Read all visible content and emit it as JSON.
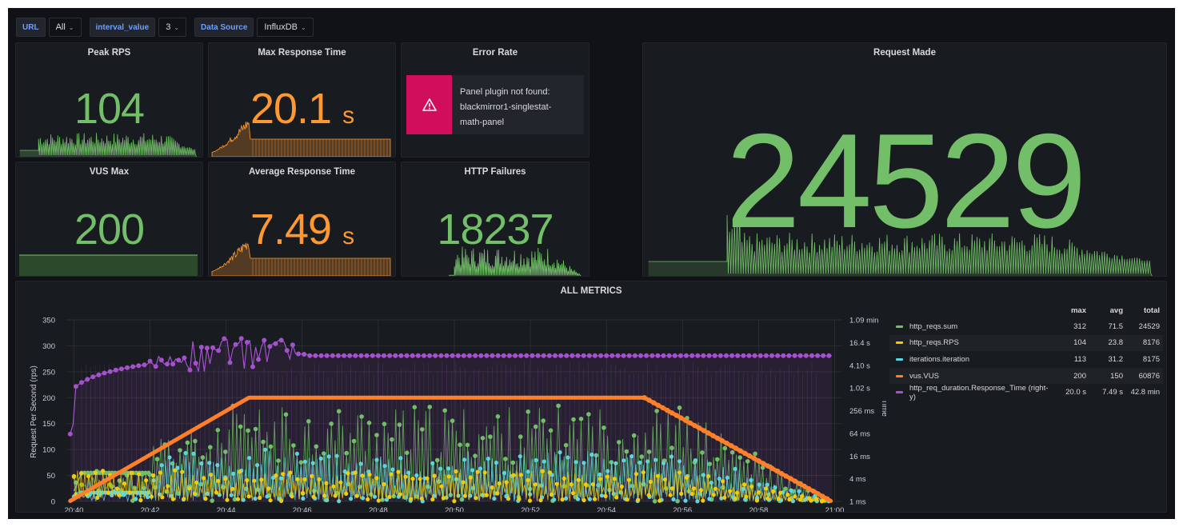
{
  "variables": [
    {
      "label": "URL",
      "value": "All"
    },
    {
      "label": "interval_value",
      "value": "3"
    },
    {
      "label": "Data Source",
      "value": "InfluxDB"
    }
  ],
  "panels": {
    "peak_rps": {
      "title": "Peak RPS",
      "value": "104",
      "color": "#73bf69"
    },
    "max_response": {
      "title": "Max Response Time",
      "value": "20.1",
      "unit": "s",
      "color": "#ff9830"
    },
    "error_rate": {
      "title": "Error Rate",
      "error": "Panel plugin not found: blackmirror1-singlestat-math-panel",
      "error_line1": "Panel plugin not found:",
      "error_line2": "blackmirror1-singlestat-",
      "error_line3": "math-panel"
    },
    "request_made": {
      "title": "Request Made",
      "value": "24529",
      "color": "#73bf69"
    },
    "vus_max": {
      "title": "VUS Max",
      "value": "200",
      "color": "#73bf69"
    },
    "avg_response": {
      "title": "Average Response Time",
      "value": "7.49",
      "unit": "s",
      "color": "#ff9830"
    },
    "http_failures": {
      "title": "HTTP Failures",
      "value": "18237",
      "color": "#73bf69"
    }
  },
  "all_metrics": {
    "title": "ALL METRICS",
    "legend_headers": {
      "max": "max",
      "avg": "avg",
      "total": "total"
    },
    "legend": [
      {
        "name": "http_reqs.sum",
        "color": "#73bf69",
        "max": "312",
        "avg": "71.5",
        "total": "24529"
      },
      {
        "name": "http_reqs.RPS",
        "color": "#f2cc0c",
        "max": "104",
        "avg": "23.8",
        "total": "8176"
      },
      {
        "name": "iterations.iteration",
        "color": "#5cd5e0",
        "max": "113",
        "avg": "31.2",
        "total": "8175"
      },
      {
        "name": "vus.VUS",
        "color": "#ff7f2a",
        "max": "200",
        "avg": "150",
        "total": "60876"
      },
      {
        "name": "http_req_duration.Response_Time (right-y)",
        "color": "#a352cc",
        "max": "20.0 s",
        "avg": "7.49 s",
        "total": "42.8 min"
      }
    ]
  },
  "chart_data": {
    "type": "line",
    "title": "ALL METRICS",
    "ylabel": "Request Per Second (rps)",
    "y2label": "Time",
    "ylim": [
      0,
      350
    ],
    "yticks": [
      "0",
      "50",
      "100",
      "150",
      "200",
      "250",
      "300",
      "350"
    ],
    "y2ticks": [
      "1 ms",
      "4 ms",
      "16 ms",
      "64 ms",
      "256 ms",
      "1.02 s",
      "4.10 s",
      "16.4 s",
      "1.09 min"
    ],
    "xticks": [
      "20:40",
      "20:42",
      "20:44",
      "20:46",
      "20:48",
      "20:50",
      "20:52",
      "20:54",
      "20:56",
      "20:58",
      "21:00"
    ],
    "xlim_minutes": [
      39.8,
      60.2
    ],
    "series": [
      {
        "name": "vus.VUS",
        "points": [
          [
            39.9,
            1
          ],
          [
            44.6,
            200
          ],
          [
            55.0,
            200
          ],
          [
            59.9,
            1
          ]
        ]
      },
      {
        "name": "http_reqs.sum",
        "approx": "spiky, about 50-190 between 20:44 and 20:56, peak 312"
      },
      {
        "name": "http_reqs.RPS",
        "approx": "about 0-60 oscillating"
      },
      {
        "name": "iterations.iteration",
        "approx": "about 0-113 oscillating"
      },
      {
        "name": "http_req_duration.Response_Time",
        "approx": "rises to about 16.4 s by 20:44, then flat about 4 s until 21:00"
      }
    ]
  }
}
